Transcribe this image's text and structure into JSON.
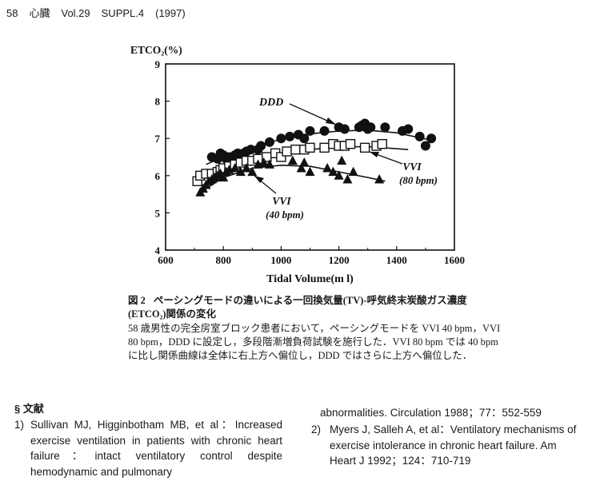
{
  "running_head": {
    "page": "58",
    "journal": "心臓",
    "volume": "Vol.29",
    "supplement": "SUPPL.4",
    "year": "(1997)"
  },
  "chart_data": {
    "type": "scatter",
    "ylabel": "ETCO₂(%)",
    "xlabel": "Tidal Volume(m l)",
    "xlim": [
      600,
      1600
    ],
    "ylim": [
      4,
      9
    ],
    "xticks": [
      600,
      800,
      1000,
      1200,
      1400,
      1600
    ],
    "yticks": [
      4,
      5,
      6,
      7,
      8,
      9
    ],
    "grid": false,
    "series": [
      {
        "name": "DDD",
        "marker": "filled-circle",
        "points": [
          [
            760,
            6.5
          ],
          [
            780,
            6.45
          ],
          [
            790,
            6.6
          ],
          [
            800,
            6.55
          ],
          [
            810,
            6.45
          ],
          [
            820,
            6.5
          ],
          [
            840,
            6.55
          ],
          [
            850,
            6.6
          ],
          [
            860,
            6.5
          ],
          [
            870,
            6.6
          ],
          [
            880,
            6.65
          ],
          [
            895,
            6.7
          ],
          [
            920,
            6.7
          ],
          [
            930,
            6.8
          ],
          [
            960,
            6.9
          ],
          [
            1000,
            7.0
          ],
          [
            1030,
            7.05
          ],
          [
            1060,
            7.1
          ],
          [
            1080,
            7.0
          ],
          [
            1100,
            7.2
          ],
          [
            1150,
            7.2
          ],
          [
            1200,
            7.3
          ],
          [
            1220,
            7.25
          ],
          [
            1270,
            7.3
          ],
          [
            1280,
            7.35
          ],
          [
            1290,
            7.4
          ],
          [
            1300,
            7.25
          ],
          [
            1310,
            7.3
          ],
          [
            1360,
            7.3
          ],
          [
            1420,
            7.2
          ],
          [
            1440,
            7.25
          ],
          [
            1480,
            7.05
          ],
          [
            1500,
            6.8
          ],
          [
            1520,
            7.0
          ]
        ],
        "curve": [
          [
            740,
            6.3
          ],
          [
            800,
            6.5
          ],
          [
            900,
            6.75
          ],
          [
            1000,
            6.98
          ],
          [
            1100,
            7.12
          ],
          [
            1200,
            7.2
          ],
          [
            1300,
            7.22
          ],
          [
            1400,
            7.15
          ],
          [
            1520,
            6.95
          ]
        ]
      },
      {
        "name": "VVI (80 bpm)",
        "marker": "open-square",
        "points": [
          [
            710,
            5.85
          ],
          [
            720,
            6.0
          ],
          [
            740,
            6.05
          ],
          [
            760,
            6.05
          ],
          [
            780,
            6.1
          ],
          [
            790,
            6.15
          ],
          [
            800,
            6.2
          ],
          [
            820,
            6.25
          ],
          [
            840,
            6.3
          ],
          [
            860,
            6.35
          ],
          [
            880,
            6.4
          ],
          [
            900,
            6.4
          ],
          [
            920,
            6.45
          ],
          [
            950,
            6.5
          ],
          [
            980,
            6.6
          ],
          [
            1000,
            6.5
          ],
          [
            1020,
            6.65
          ],
          [
            1050,
            6.7
          ],
          [
            1080,
            6.7
          ],
          [
            1100,
            6.75
          ],
          [
            1150,
            6.75
          ],
          [
            1180,
            6.85
          ],
          [
            1200,
            6.8
          ],
          [
            1220,
            6.8
          ],
          [
            1240,
            6.85
          ],
          [
            1290,
            6.75
          ],
          [
            1330,
            6.8
          ],
          [
            1350,
            6.85
          ]
        ],
        "curve": [
          [
            710,
            5.9
          ],
          [
            800,
            6.15
          ],
          [
            900,
            6.4
          ],
          [
            1000,
            6.58
          ],
          [
            1100,
            6.7
          ],
          [
            1200,
            6.77
          ],
          [
            1300,
            6.78
          ],
          [
            1440,
            6.7
          ]
        ]
      },
      {
        "name": "VVI (40 bpm)",
        "marker": "filled-triangle",
        "points": [
          [
            720,
            5.55
          ],
          [
            730,
            5.65
          ],
          [
            740,
            5.75
          ],
          [
            750,
            5.85
          ],
          [
            760,
            5.9
          ],
          [
            770,
            5.95
          ],
          [
            780,
            6.0
          ],
          [
            790,
            6.05
          ],
          [
            800,
            5.95
          ],
          [
            810,
            6.1
          ],
          [
            820,
            6.15
          ],
          [
            840,
            6.2
          ],
          [
            860,
            6.1
          ],
          [
            880,
            6.2
          ],
          [
            900,
            6.1
          ],
          [
            920,
            6.3
          ],
          [
            940,
            6.35
          ],
          [
            960,
            6.3
          ],
          [
            1040,
            6.4
          ],
          [
            1070,
            6.2
          ],
          [
            1080,
            6.35
          ],
          [
            1100,
            6.1
          ],
          [
            1160,
            6.2
          ],
          [
            1180,
            6.1
          ],
          [
            1200,
            6.0
          ],
          [
            1210,
            6.4
          ],
          [
            1230,
            5.9
          ],
          [
            1250,
            6.1
          ],
          [
            1340,
            5.9
          ]
        ],
        "curve": [
          [
            710,
            5.5
          ],
          [
            800,
            5.95
          ],
          [
            900,
            6.2
          ],
          [
            1000,
            6.28
          ],
          [
            1100,
            6.25
          ],
          [
            1200,
            6.1
          ],
          [
            1300,
            5.95
          ],
          [
            1360,
            5.85
          ]
        ]
      }
    ],
    "annotations": [
      {
        "text": "DDD",
        "points_to": "DDD"
      },
      {
        "text": "VVI",
        "text2": "(80 bpm)",
        "points_to": "VVI (80 bpm)"
      },
      {
        "text": "VVI",
        "text2": "(40 bpm)",
        "points_to": "VVI (40 bpm)"
      }
    ]
  },
  "caption": {
    "label": "図 2",
    "title": "ペーシングモードの違いによる一回換気量(TV)-呼気終末炭酸ガス濃度(ETCO₂)関係の変化",
    "body": "58 歳男性の完全房室ブロック患者において，ペーシングモードを VVI 40 bpm，VVI 80 bpm，DDD に設定し，多段階漸増負荷試験を施行した．VVI 80 bpm では 40 bpm に比し関係曲線は全体に右上方へ偏位し，DDD ではさらに上方へ偏位した．"
  },
  "references": {
    "heading": "§ 文献",
    "items": [
      {
        "num": "1)",
        "text": "Sullivan MJ, Higginbotham MB, et al：Increased exercise ventilation in patients with chronic heart failure：intact ventilatory control despite hemodynamic and pulmonary"
      },
      {
        "num": "2)",
        "text": "Myers J, Salleh A, et al：Ventilatory mechanisms of exercise intolerance in chronic heart failure. Am Heart J 1992；124：710-719"
      }
    ],
    "continuation": "abnormalities. Circulation 1988；77：552-559"
  }
}
